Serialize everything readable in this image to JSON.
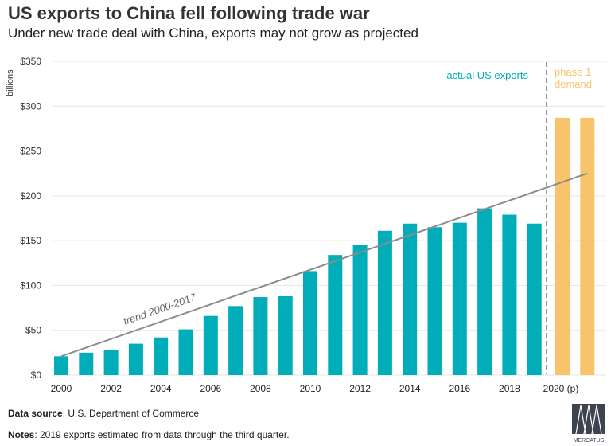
{
  "title": "US exports to China fell following trade war",
  "subtitle": "Under new trade deal with China, exports may not grow as projected",
  "footer": {
    "source_label": "Data source",
    "source_text": ": U.S. Department of Commerce",
    "notes_label": "Notes",
    "notes_text": ": 2019 exports estimated from data through the third quarter.",
    "logo_text": "MERCATUS"
  },
  "chart_data": {
    "type": "bar",
    "ylabel": "billions",
    "ylim": [
      0,
      350
    ],
    "yticks": [
      0,
      50,
      100,
      150,
      200,
      250,
      300,
      350
    ],
    "ytick_labels": [
      "$0",
      "$50",
      "$100",
      "$150",
      "$200",
      "$250",
      "$300",
      "$350"
    ],
    "xtick_labels": [
      "2000",
      "2002",
      "2004",
      "2006",
      "2008",
      "2010",
      "2012",
      "2014",
      "2016",
      "2018",
      "2020 (p)"
    ],
    "grid": true,
    "series": [
      {
        "name": "actual US exports",
        "color": "#00adb9",
        "years": [
          2000,
          2001,
          2002,
          2003,
          2004,
          2005,
          2006,
          2007,
          2008,
          2009,
          2010,
          2011,
          2012,
          2013,
          2014,
          2015,
          2016,
          2017,
          2018,
          2019
        ],
        "values": [
          21,
          25,
          28,
          35,
          42,
          51,
          66,
          77,
          87,
          88,
          116,
          134,
          145,
          161,
          169,
          165,
          170,
          186,
          179,
          169
        ]
      },
      {
        "name": "phase 1 demand",
        "color": "#f7c46c",
        "years": [
          2020,
          2021
        ],
        "values": [
          287,
          287
        ]
      }
    ],
    "trend": {
      "label": "trend 2000-2017",
      "start": [
        2000,
        21
      ],
      "end": [
        2021,
        225
      ],
      "color": "#8c8c8c"
    },
    "annotations": {
      "actual_label": "actual US exports",
      "phase_label_1": "phase 1",
      "phase_label_2": "demand"
    }
  }
}
